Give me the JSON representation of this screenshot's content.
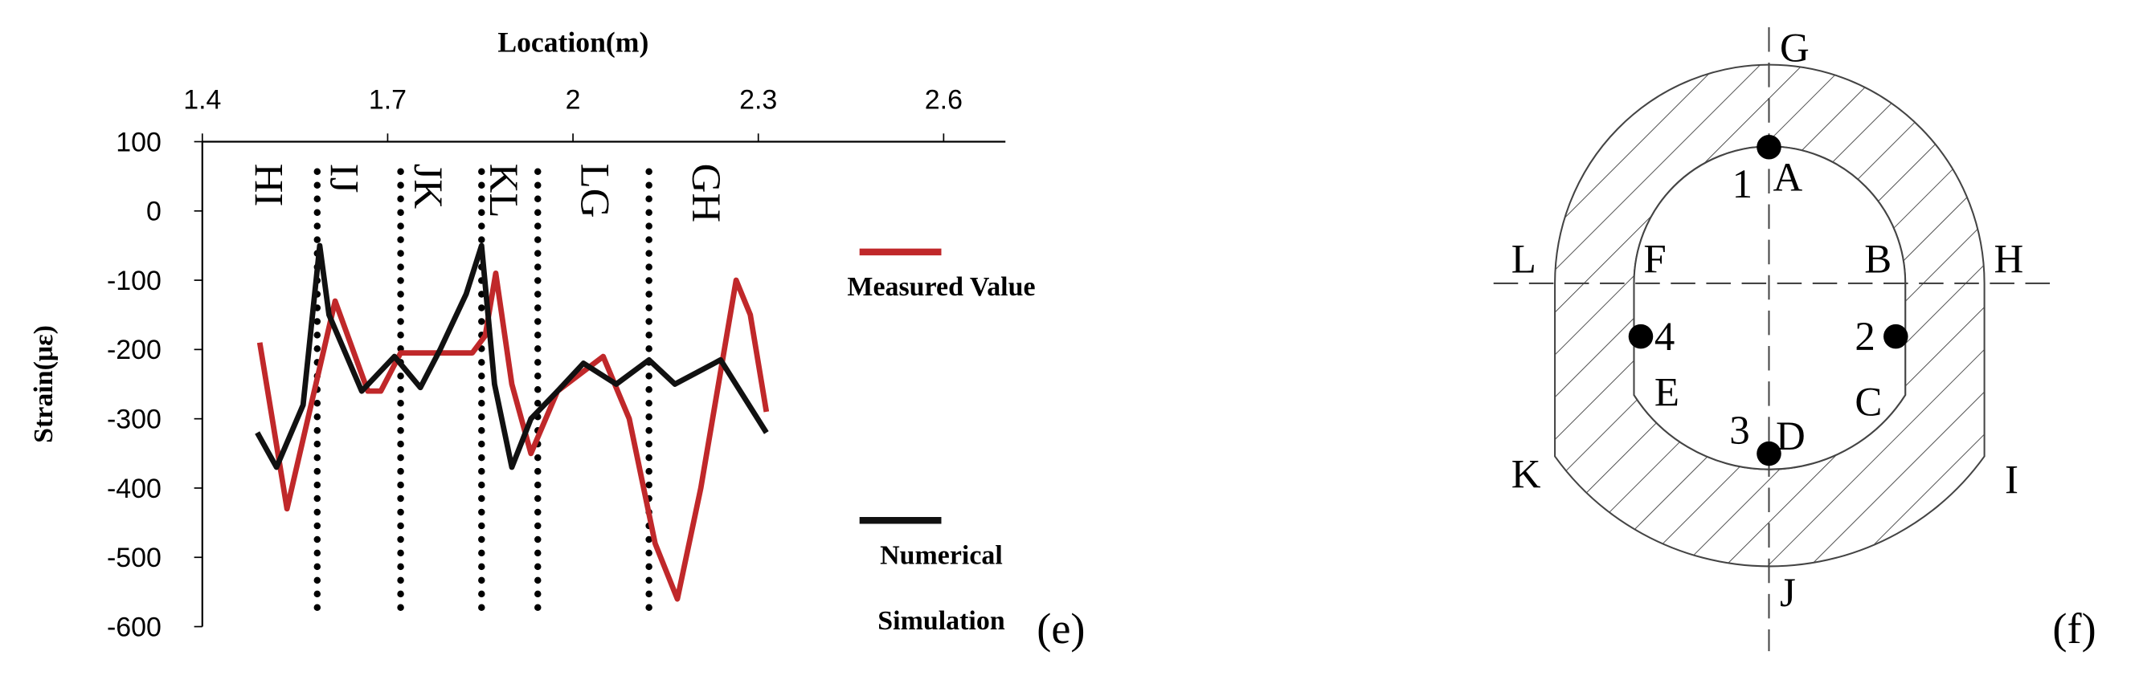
{
  "chart_data": {
    "type": "line",
    "x_label": "Location(m)",
    "y_label": "Strain(με)",
    "xlim": [
      1.4,
      2.7
    ],
    "xticks": [
      1.4,
      1.7,
      2,
      2.3,
      2.6
    ],
    "ylim": [
      -600,
      100
    ],
    "yticks": [
      -600,
      -500,
      -400,
      -300,
      -200,
      -100,
      0,
      100
    ],
    "dividers": [
      1.586,
      1.721,
      1.852,
      1.943,
      2.123
    ],
    "annotations": [
      {
        "text": "HI",
        "x": 1.51
      },
      {
        "text": "IJ",
        "x": 1.632
      },
      {
        "text": "JK",
        "x": 1.768
      },
      {
        "text": "KL",
        "x": 1.89
      },
      {
        "text": "LG",
        "x": 2.038
      },
      {
        "text": "GH",
        "x": 2.218
      }
    ],
    "panel_label": "(e)",
    "series": [
      {
        "name": "Measured Value",
        "color": "#c0282a",
        "x": [
          1.493,
          1.537,
          1.615,
          1.668,
          1.689,
          1.721,
          1.837,
          1.858,
          1.875,
          1.901,
          1.932,
          1.975,
          2.049,
          2.091,
          2.133,
          2.169,
          2.207,
          2.264,
          2.287,
          2.313
        ],
        "values": [
          -190,
          -430,
          -130,
          -260,
          -260,
          -205,
          -205,
          -180,
          -90,
          -250,
          -350,
          -260,
          -210,
          -300,
          -480,
          -560,
          -400,
          -100,
          -150,
          -290
        ]
      },
      {
        "name": "Numerical Simulation",
        "color": "#111111",
        "x": [
          1.489,
          1.52,
          1.563,
          1.59,
          1.605,
          1.658,
          1.711,
          1.753,
          1.785,
          1.827,
          1.852,
          1.873,
          1.901,
          1.932,
          1.975,
          2.017,
          2.07,
          2.123,
          2.165,
          2.239,
          2.313
        ],
        "values": [
          -320,
          -370,
          -280,
          -50,
          -150,
          -260,
          -210,
          -255,
          -200,
          -120,
          -50,
          -250,
          -370,
          -300,
          -260,
          -220,
          -250,
          -215,
          -250,
          -215,
          -320
        ]
      }
    ]
  },
  "diagram": {
    "labels": [
      "G",
      "A",
      "1",
      "L",
      "F",
      "B",
      "H",
      "4",
      "2",
      "E",
      "C",
      "3",
      "D",
      "K",
      "I",
      "J"
    ],
    "panel_label": "(f)"
  }
}
